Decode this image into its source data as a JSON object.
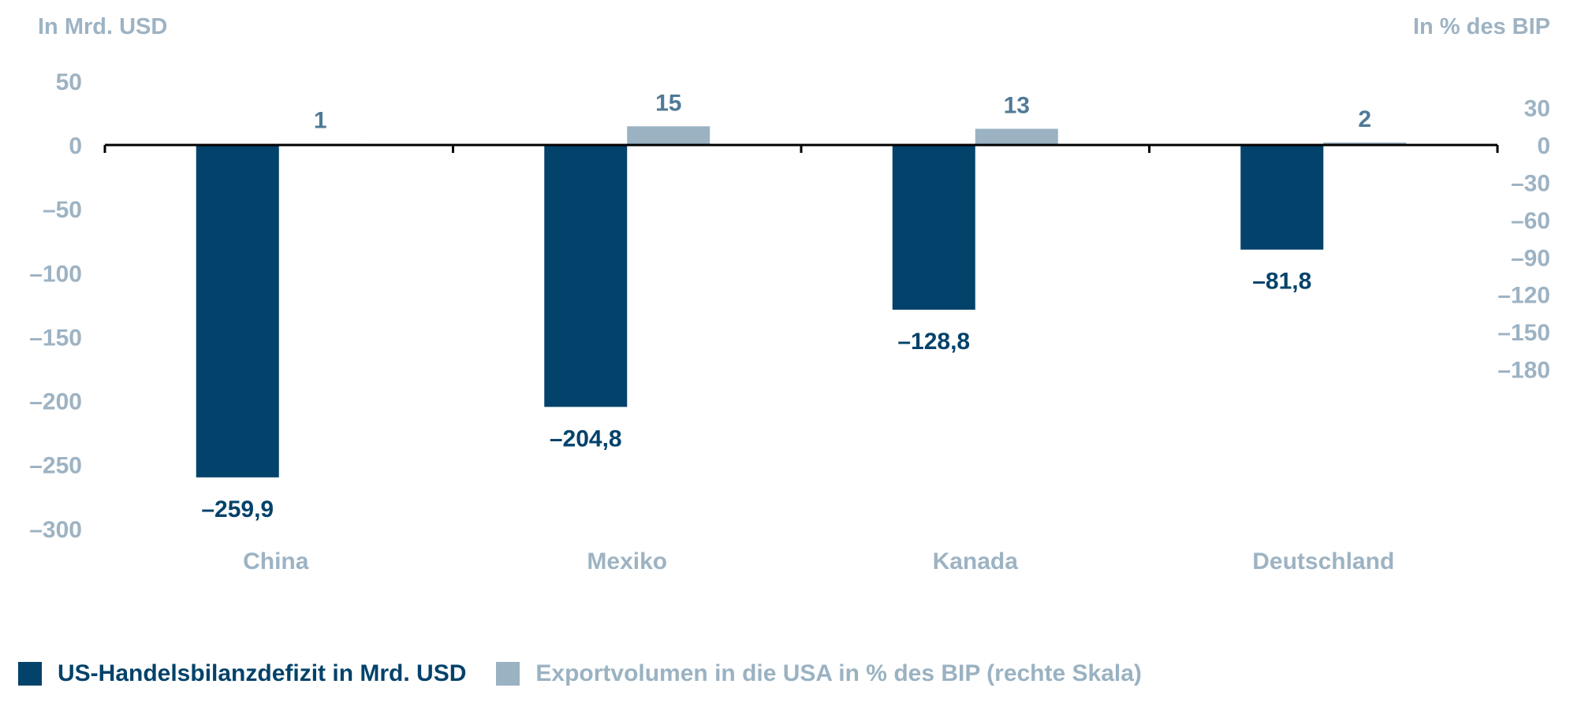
{
  "chart_data": {
    "type": "bar",
    "categories": [
      "China",
      "Mexiko",
      "Kanada",
      "Deutschland"
    ],
    "series": [
      {
        "name": "US-Handelsbilanzdefizit in Mrd. USD",
        "axis": "left",
        "values": [
          -259.9,
          -204.8,
          -128.8,
          -81.8
        ],
        "labels": [
          "–259,9",
          "–204,8",
          "–128,8",
          "–81,8"
        ],
        "color": "#03426a"
      },
      {
        "name": "Exportvolumen in die USA in % des BIP (rechte Skala)",
        "axis": "right",
        "values": [
          1,
          15,
          13,
          2
        ],
        "labels": [
          "1",
          "15",
          "13",
          "2"
        ],
        "color": "#9ab2c2"
      }
    ],
    "left_axis": {
      "title": "In Mrd. USD",
      "ylim": [
        -300,
        50
      ],
      "ticks": [
        50,
        0,
        -50,
        -100,
        -150,
        -200,
        -250,
        -300
      ],
      "tick_labels": [
        "50",
        "0",
        "–50",
        "–100",
        "–150",
        "–200",
        "–250",
        "–300"
      ]
    },
    "right_axis": {
      "title": "In % des BIP",
      "ylim": [
        -180,
        30
      ],
      "ticks": [
        30,
        0,
        -30,
        -60,
        -90,
        -120,
        -150,
        -180
      ],
      "tick_labels": [
        "30",
        "0",
        "–30",
        "–60",
        "–90",
        "–120",
        "–150",
        "–180"
      ]
    },
    "grid": false,
    "legend_position": "bottom-left",
    "colors": {
      "tick_text": "#9db3c3",
      "right_value_label": "#4f7a96",
      "axis_line": "#000000"
    }
  }
}
